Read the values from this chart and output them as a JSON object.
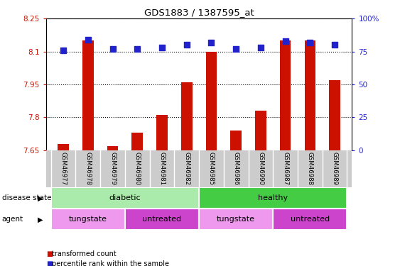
{
  "title": "GDS1883 / 1387595_at",
  "samples": [
    "GSM46977",
    "GSM46978",
    "GSM46979",
    "GSM46980",
    "GSM46981",
    "GSM46982",
    "GSM46985",
    "GSM46986",
    "GSM46990",
    "GSM46987",
    "GSM46988",
    "GSM46989"
  ],
  "transformed_count": [
    7.68,
    8.15,
    7.67,
    7.73,
    7.81,
    7.96,
    8.1,
    7.74,
    7.83,
    8.15,
    8.15,
    7.97
  ],
  "percentile_rank": [
    76,
    84,
    77,
    77,
    78,
    80,
    82,
    77,
    78,
    83,
    82,
    80
  ],
  "ylim_left": [
    7.65,
    8.25
  ],
  "ylim_right": [
    0,
    100
  ],
  "yticks_left": [
    7.65,
    7.8,
    7.95,
    8.1,
    8.25
  ],
  "yticks_right": [
    0,
    25,
    50,
    75,
    100
  ],
  "ytick_labels_left": [
    "7.65",
    "7.8",
    "7.95",
    "8.1",
    "8.25"
  ],
  "ytick_labels_right": [
    "0",
    "25",
    "50",
    "75",
    "100%"
  ],
  "bar_color": "#cc1100",
  "dot_color": "#2222cc",
  "grid_color": "#000000",
  "bar_width": 0.45,
  "dot_size": 35,
  "disease_state_groups": [
    {
      "label": "diabetic",
      "start": 0,
      "end": 5,
      "color": "#aaeaaa"
    },
    {
      "label": "healthy",
      "start": 6,
      "end": 11,
      "color": "#44cc44"
    }
  ],
  "agent_groups": [
    {
      "label": "tungstate",
      "start": 0,
      "end": 2,
      "color": "#ee99ee"
    },
    {
      "label": "untreated",
      "start": 3,
      "end": 5,
      "color": "#cc44cc"
    },
    {
      "label": "tungstate",
      "start": 6,
      "end": 8,
      "color": "#ee99ee"
    },
    {
      "label": "untreated",
      "start": 9,
      "end": 11,
      "color": "#cc44cc"
    }
  ],
  "legend_items": [
    {
      "label": "transformed count",
      "color": "#cc1100"
    },
    {
      "label": "percentile rank within the sample",
      "color": "#2222cc"
    }
  ],
  "tick_label_color_left": "#cc1100",
  "tick_label_color_right": "#2222cc",
  "background_color": "#ffffff",
  "label_bg_color": "#cccccc",
  "label_sep_color": "#ffffff"
}
